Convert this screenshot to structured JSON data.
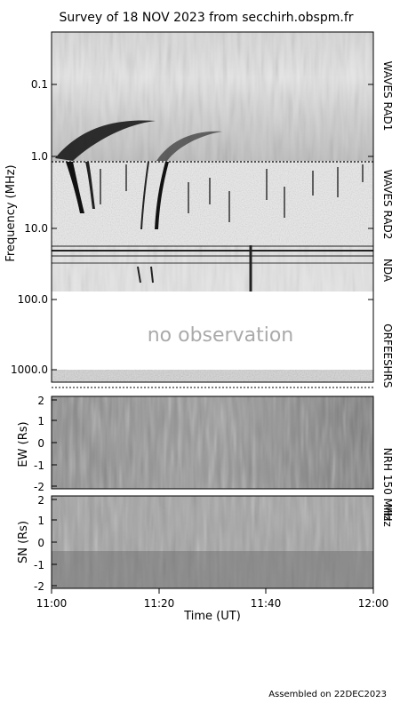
{
  "title": "Survey of 18 NOV 2023 from secchirh.obspm.fr",
  "footer": "Assembled on 22DEC2023",
  "spectrum": {
    "ylabel": "Frequency (MHz)",
    "yticks": [
      "0.1",
      "1.0",
      "10.0",
      "100.0",
      "1000.0"
    ],
    "no_obs_text": "no observation",
    "instruments": [
      "WAVES RAD1",
      "WAVES RAD2",
      "NDA",
      "ORFEES",
      "HRS"
    ]
  },
  "ew": {
    "ylabel": "EW (Rs)",
    "yticks": [
      "2",
      "1",
      "0",
      "-1",
      "-2"
    ],
    "instrument": "NRH 150 MHz"
  },
  "sn": {
    "ylabel": "SN (Rs)",
    "yticks": [
      "2",
      "1",
      "0",
      "-1",
      "-2"
    ],
    "instrument": "MHz"
  },
  "xaxis": {
    "label": "Time (UT)",
    "ticks": [
      "11:00",
      "11:20",
      "11:40",
      "12:00"
    ]
  }
}
